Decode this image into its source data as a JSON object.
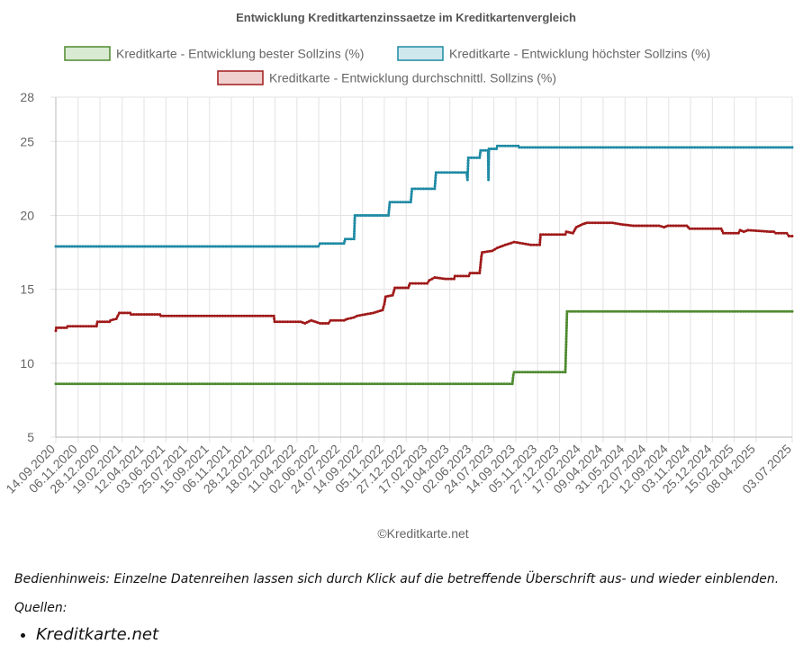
{
  "chart_data": {
    "type": "line",
    "title": "Entwicklung Kreditkartenzinssaetze im Kreditkartenvergleich",
    "xlabel": "",
    "ylabel": "",
    "ylim": [
      5,
      28
    ],
    "yticks": [
      5,
      10,
      15,
      20,
      25,
      28
    ],
    "xlim": [
      "14.09.2020",
      "03.07.2025"
    ],
    "xticks": [
      "14.09.2020",
      "06.11.2020",
      "28.12.2020",
      "19.02.2021",
      "12.04.2021",
      "03.06.2021",
      "25.07.2021",
      "15.09.2021",
      "06.11.2021",
      "28.12.2021",
      "18.02.2022",
      "11.04.2022",
      "02.06.2022",
      "24.07.2022",
      "14.09.2022",
      "05.11.2022",
      "27.12.2022",
      "17.02.2023",
      "10.04.2023",
      "02.06.2023",
      "24.07.2023",
      "14.09.2023",
      "05.11.2023",
      "27.12.2023",
      "17.02.2024",
      "09.04.2024",
      "31.05.2024",
      "22.07.2024",
      "12.09.2024",
      "03.11.2024",
      "25.12.2024",
      "15.02.2025",
      "08.04.2025",
      "03.07.2025"
    ],
    "grid": true,
    "legend_position": "top",
    "watermark": "©Kreditkarte.net",
    "series": [
      {
        "name": "Kreditkarte - Entwicklung bester Sollzins  (%)",
        "color": "#4e8a2e",
        "fill": "#d9ead3",
        "points": [
          [
            "14.09.2020",
            8.6
          ],
          [
            "06.09.2023",
            8.6
          ],
          [
            "08.09.2023",
            9.2
          ],
          [
            "10.09.2023",
            9.4
          ],
          [
            "10.01.2024",
            9.4
          ],
          [
            "14.01.2024",
            13.5
          ],
          [
            "03.07.2025",
            13.5
          ]
        ]
      },
      {
        "name": "Kreditkarte - Entwicklung höchster Sollzins (%)",
        "color": "#1f8aa4",
        "fill": "#cfe8ee",
        "points": [
          [
            "14.09.2020",
            17.9
          ],
          [
            "01.06.2022",
            17.9
          ],
          [
            "05.06.2022",
            18.1
          ],
          [
            "01.08.2022",
            18.1
          ],
          [
            "04.08.2022",
            18.4
          ],
          [
            "25.08.2022",
            18.4
          ],
          [
            "27.08.2022",
            20.0
          ],
          [
            "15.11.2022",
            20.0
          ],
          [
            "18.11.2022",
            20.9
          ],
          [
            "07.01.2023",
            20.9
          ],
          [
            "10.01.2023",
            21.8
          ],
          [
            "05.03.2023",
            21.8
          ],
          [
            "08.03.2023",
            22.9
          ],
          [
            "20.05.2023",
            22.9
          ],
          [
            "22.05.2023",
            22.4
          ],
          [
            "24.05.2023",
            23.9
          ],
          [
            "20.06.2023",
            23.9
          ],
          [
            "22.06.2023",
            24.4
          ],
          [
            "10.07.2023",
            24.4
          ],
          [
            "11.07.2023",
            22.4
          ],
          [
            "12.07.2023",
            24.5
          ],
          [
            "30.07.2023",
            24.5
          ],
          [
            "01.08.2023",
            24.7
          ],
          [
            "20.09.2023",
            24.7
          ],
          [
            "22.09.2023",
            24.6
          ],
          [
            "03.07.2025",
            24.6
          ]
        ]
      },
      {
        "name": "Kreditkarte - Entwicklung durchschnittl. Sollzins (%)",
        "color": "#a01a1a",
        "fill": "#f0cfcf",
        "points": [
          [
            "14.09.2020",
            12.2
          ],
          [
            "15.09.2020",
            12.4
          ],
          [
            "10.10.2020",
            12.4
          ],
          [
            "12.10.2020",
            12.5
          ],
          [
            "20.12.2020",
            12.5
          ],
          [
            "22.12.2020",
            12.8
          ],
          [
            "20.01.2021",
            12.8
          ],
          [
            "22.01.2021",
            12.9
          ],
          [
            "05.02.2021",
            13.0
          ],
          [
            "12.02.2021",
            13.4
          ],
          [
            "10.03.2021",
            13.4
          ],
          [
            "12.03.2021",
            13.3
          ],
          [
            "20.05.2021",
            13.3
          ],
          [
            "22.05.2021",
            13.2
          ],
          [
            "15.02.2022",
            13.2
          ],
          [
            "17.02.2022",
            12.8
          ],
          [
            "20.04.2022",
            12.8
          ],
          [
            "30.04.2022",
            12.7
          ],
          [
            "15.05.2022",
            12.9
          ],
          [
            "25.05.2022",
            12.8
          ],
          [
            "05.06.2022",
            12.7
          ],
          [
            "25.06.2022",
            12.7
          ],
          [
            "30.06.2022",
            12.9
          ],
          [
            "01.08.2022",
            12.9
          ],
          [
            "10.08.2022",
            13.0
          ],
          [
            "25.08.2022",
            13.1
          ],
          [
            "01.09.2022",
            13.2
          ],
          [
            "20.09.2022",
            13.3
          ],
          [
            "10.10.2022",
            13.4
          ],
          [
            "01.11.2022",
            13.6
          ],
          [
            "05.11.2022",
            14.0
          ],
          [
            "08.11.2022",
            14.5
          ],
          [
            "25.11.2022",
            14.6
          ],
          [
            "30.11.2022",
            15.1
          ],
          [
            "01.01.2023",
            15.1
          ],
          [
            "05.01.2023",
            15.4
          ],
          [
            "15.02.2023",
            15.4
          ],
          [
            "20.02.2023",
            15.6
          ],
          [
            "05.03.2023",
            15.8
          ],
          [
            "30.03.2023",
            15.7
          ],
          [
            "20.04.2023",
            15.7
          ],
          [
            "22.04.2023",
            15.9
          ],
          [
            "25.05.2023",
            15.9
          ],
          [
            "28.05.2023",
            16.1
          ],
          [
            "20.06.2023",
            16.1
          ],
          [
            "24.06.2023",
            17.2
          ],
          [
            "26.06.2023",
            17.5
          ],
          [
            "20.07.2023",
            17.6
          ],
          [
            "01.08.2023",
            17.8
          ],
          [
            "20.08.2023",
            18.0
          ],
          [
            "10.09.2023",
            18.2
          ],
          [
            "01.10.2023",
            18.1
          ],
          [
            "20.10.2023",
            18.0
          ],
          [
            "10.11.2023",
            18.0
          ],
          [
            "12.11.2023",
            18.7
          ],
          [
            "10.01.2024",
            18.7
          ],
          [
            "12.01.2024",
            18.9
          ],
          [
            "28.01.2024",
            18.8
          ],
          [
            "05.02.2024",
            19.2
          ],
          [
            "20.02.2024",
            19.4
          ],
          [
            "01.03.2024",
            19.5
          ],
          [
            "01.05.2024",
            19.5
          ],
          [
            "20.05.2024",
            19.4
          ],
          [
            "20.06.2024",
            19.3
          ],
          [
            "20.08.2024",
            19.3
          ],
          [
            "01.09.2024",
            19.2
          ],
          [
            "10.09.2024",
            19.3
          ],
          [
            "25.10.2024",
            19.3
          ],
          [
            "01.11.2024",
            19.1
          ],
          [
            "15.01.2025",
            19.1
          ],
          [
            "20.01.2025",
            18.8
          ],
          [
            "25.02.2025",
            18.8
          ],
          [
            "01.03.2025",
            19.0
          ],
          [
            "10.03.2025",
            18.9
          ],
          [
            "20.03.2025",
            19.0
          ],
          [
            "10.05.2025",
            18.9
          ],
          [
            "20.05.2025",
            18.9
          ],
          [
            "25.05.2025",
            18.8
          ],
          [
            "20.06.2025",
            18.8
          ],
          [
            "25.06.2025",
            18.6
          ],
          [
            "03.07.2025",
            18.6
          ]
        ]
      }
    ]
  },
  "notes": {
    "hint": "Bedienhinweis: Einzelne Datenreihen lassen sich durch Klick auf die betreffende Überschrift aus- und wieder einblenden.",
    "sources_label": "Quellen:",
    "sources": [
      "Kreditkarte.net"
    ]
  }
}
